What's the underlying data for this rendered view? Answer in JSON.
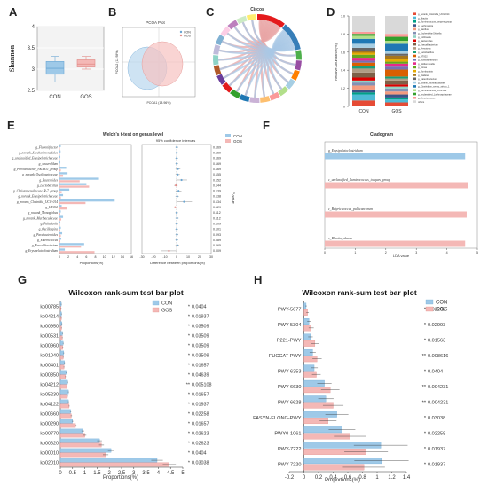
{
  "panels": {
    "a": "A",
    "b": "B",
    "c": "C",
    "d": "D",
    "e": "E",
    "f": "F",
    "g": "G",
    "h": "H"
  },
  "colors": {
    "con": "#9ec9e8",
    "gos": "#f4b8b6",
    "con_edge": "#6aa6d3",
    "gos_edge": "#e08a86"
  },
  "chart_data": [
    {
      "panel": "A",
      "type": "box",
      "ylabel": "Shannon",
      "categories": [
        "CON",
        "GOS"
      ],
      "yticks": [
        2.5,
        3.0,
        3.5,
        4.0
      ],
      "ylim": [
        2.5,
        4.0
      ],
      "boxes": [
        {
          "name": "CON",
          "min": 2.7,
          "q1": 2.88,
          "median": 3.02,
          "q3": 3.18,
          "max": 3.3
        },
        {
          "name": "GOS",
          "min": 3.0,
          "q1": 3.05,
          "median": 3.12,
          "q3": 3.22,
          "max": 3.3
        }
      ]
    },
    {
      "panel": "B",
      "type": "scatter",
      "title": "PCOA Plot",
      "xlabel": "PCOA1 (18.96%)",
      "ylabel": "PCOA2 (12.98%)",
      "legend": [
        "CON",
        "GOS"
      ]
    },
    {
      "panel": "C",
      "type": "chord",
      "title": "Circos"
    },
    {
      "panel": "D",
      "type": "bar",
      "ylabel": "Relative Abundance(%)",
      "categories": [
        "CON",
        "GOS"
      ],
      "yticks": [
        "0",
        "0.2",
        "0.4",
        "0.6",
        "0.8",
        "1.0"
      ],
      "legend": [
        "g_norank_Clostridia_UCG-014",
        "g_Blautia",
        "g_Ruminococcus_torques_group",
        "g_Lachnospira",
        "g_Bacillus",
        "g_Escherichia-Shigella",
        "g_Collinsella",
        "g_Bacteroides",
        "g_Faecalibacterium",
        "g_Prevotella",
        "g_Lactobacillus",
        "g_HT002",
        "g_Subdoligranulum",
        "g_Holdemanella",
        "g_Dorea",
        "g_Romboutsia",
        "g_Dialister",
        "g_Catenibacterium",
        "g_norank_Muribaculaceae",
        "g_Clostridium_sensu_stricto_1",
        "g_Ruminococcus_UCG-002",
        "g_unclassified_Lachnospiraceae",
        "g_Streptococcus",
        "others"
      ]
    },
    {
      "panel": "E",
      "type": "bar",
      "title": "Welch's t-test on genus level",
      "ci_title": "95% confidence intervals",
      "xlabel_left": "Proportions(%)",
      "xlabel_right": "Difference between proportions(%)",
      "ylabel_right": "P-value",
      "legend": [
        "CON",
        "GOS"
      ],
      "left_xticks": [
        "0",
        "2",
        "4",
        "6",
        "8",
        "10",
        "12",
        "14",
        "16"
      ],
      "right_xticks": [
        "-30",
        "-20",
        "-10",
        "0",
        "10",
        "20",
        "30"
      ],
      "categories": [
        "g_Flavonifractor",
        "g_norank_Saccharimonadales",
        "g_unclassified_Erysipelotrichaceae",
        "g_Anaerofilum",
        "g_Prevotellaceae_NK3B31_group",
        "g_norank_Oscillospiraceae",
        "g_Bacteroides",
        "g_Lactobacillus",
        "g_Christensenellaceae_R-7_group",
        "g_norank_Erysipelotrichaceae",
        "g_norank_Clostridia_UCG-014",
        "g_HT002",
        "g_norank_Monoglobus",
        "g_norank_Muribaculaceae",
        "g_Paludicola",
        "g_Oscillospira",
        "g_Parabacteroides",
        "g_Enterococcus",
        "g_Faecalibacterium",
        "g_Erysipelatoclostridium"
      ],
      "series": [
        {
          "name": "CON",
          "values": [
            0.3,
            0.25,
            0.2,
            0.2,
            1.5,
            1.8,
            8.8,
            6.0,
            2.2,
            0.8,
            12.3,
            0.5,
            0.3,
            0.8,
            0.2,
            0.3,
            0.6,
            0.4,
            5.5,
            1.2
          ]
        },
        {
          "name": "GOS",
          "values": [
            0.1,
            0.1,
            0.1,
            0.05,
            0.3,
            0.8,
            4.5,
            6.6,
            0.5,
            0.3,
            5.8,
            1.7,
            0.2,
            0.4,
            0.1,
            0.2,
            0.3,
            0.2,
            4.8,
            7.8
          ]
        }
      ],
      "differences": [
        0.2,
        0.15,
        0.1,
        0.15,
        1.2,
        1.0,
        4.3,
        -0.6,
        1.7,
        0.5,
        6.5,
        -1.2,
        0.1,
        0.4,
        0.1,
        0.1,
        0.3,
        0.2,
        0.7,
        -6.6
      ],
      "pvalues": [
        "0.169",
        "0.169",
        "0.169",
        "0.169",
        "0.169",
        "0.155",
        "0.152",
        "0.144",
        "0.139",
        "0.138",
        "0.134",
        "0.129",
        "0.112",
        "0.112",
        "0.109",
        "0.101",
        "0.093",
        "0.089",
        "0.065",
        "0.009"
      ]
    },
    {
      "panel": "F",
      "type": "bar",
      "title": "Cladogram",
      "xlabel": "LDA value",
      "xticks": [
        "0",
        "1",
        "2",
        "3",
        "4",
        "5"
      ],
      "xlim": [
        0,
        5
      ],
      "categories": [
        "g_Erysipelatoclostridium",
        "c_unclassified_Ruminococcus_torques_group",
        "c_Butyricicoccus_pullicaecorum",
        "c_Blautia_obeum"
      ],
      "groups": [
        "CON",
        "GOS",
        "GOS",
        "GOS"
      ],
      "values": [
        4.6,
        4.7,
        4.65,
        4.6
      ]
    },
    {
      "panel": "G",
      "type": "bar",
      "title": "Wilcoxon rank-sum test bar plot",
      "xlabel": "Proportions(%)",
      "legend": [
        "CON",
        "GOS"
      ],
      "xticks": [
        "0",
        "0.5",
        "1",
        "1.5",
        "2",
        "2.5",
        "3",
        "3.5",
        "4",
        "4.5",
        "5"
      ],
      "xlim": [
        0,
        5
      ],
      "categories": [
        "ko00785",
        "ko04214",
        "ko00950",
        "ko00531",
        "ko00960",
        "ko01040",
        "ko00401",
        "ko00350",
        "ko04212",
        "ko05230",
        "ko04122",
        "ko00660",
        "ko00290",
        "ko00770",
        "ko00620",
        "ko00010",
        "ko02010"
      ],
      "series": [
        {
          "name": "CON",
          "values": [
            0.04,
            0.05,
            0.06,
            0.09,
            0.12,
            0.14,
            0.17,
            0.24,
            0.3,
            0.33,
            0.33,
            0.42,
            0.5,
            0.92,
            1.6,
            2.07,
            3.95
          ]
        },
        {
          "name": "GOS",
          "values": [
            0.03,
            0.04,
            0.05,
            0.08,
            0.1,
            0.12,
            0.15,
            0.21,
            0.27,
            0.29,
            0.36,
            0.45,
            0.62,
            1.0,
            1.68,
            1.85,
            4.45
          ]
        }
      ],
      "pvalues": [
        "0.0404",
        "0.01937",
        "0.03509",
        "0.03509",
        "0.03509",
        "0.03509",
        "0.01657",
        "0.04639",
        "0.005108",
        "0.01657",
        "0.01937",
        "0.02258",
        "0.01657",
        "0.02623",
        "0.02623",
        "0.0404",
        "0.03038"
      ],
      "stars": [
        "*",
        "*",
        "*",
        "*",
        "*",
        "*",
        "*",
        "*",
        "**",
        "*",
        "*",
        "*",
        "*",
        "*",
        "*",
        "*",
        "*"
      ]
    },
    {
      "panel": "H",
      "type": "bar",
      "title": "Wilcoxon rank-sum test bar plot",
      "xlabel": "Proportions(%)",
      "legend": [
        "CON",
        "GOS"
      ],
      "xticks": [
        "-0.2",
        "0",
        "0.2",
        "0.4",
        "0.6",
        "0.8",
        "1",
        "1.2",
        "1.4"
      ],
      "xlim": [
        -0.2,
        1.4
      ],
      "categories": [
        "PWY-5677",
        "PWY-5304",
        "P221-PWY",
        "FUCCAT-PWY",
        "PWY-6353",
        "PWY-6630",
        "PWY-6628",
        "FASYN-ELONG-PWY",
        "PWY0-1061",
        "PWY-7222",
        "PWY-7220"
      ],
      "series": [
        {
          "name": "CON",
          "values": [
            0.03,
            0.07,
            0.09,
            0.12,
            0.14,
            0.28,
            0.3,
            0.45,
            0.52,
            1.05,
            1.06
          ]
        },
        {
          "name": "GOS",
          "values": [
            0.05,
            0.1,
            0.15,
            0.18,
            0.17,
            0.36,
            0.4,
            0.33,
            0.63,
            0.85,
            0.82
          ]
        }
      ],
      "pvalues": [
        "0.02202",
        "0.02993",
        "0.01563",
        "0.008616",
        "0.0404",
        "0.004231",
        "0.004231",
        "0.03038",
        "0.02258",
        "0.01937",
        "0.01937"
      ],
      "stars": [
        "*",
        "*",
        "*",
        "**",
        "*",
        "**",
        "**",
        "*",
        "*",
        "*",
        "*"
      ]
    }
  ]
}
